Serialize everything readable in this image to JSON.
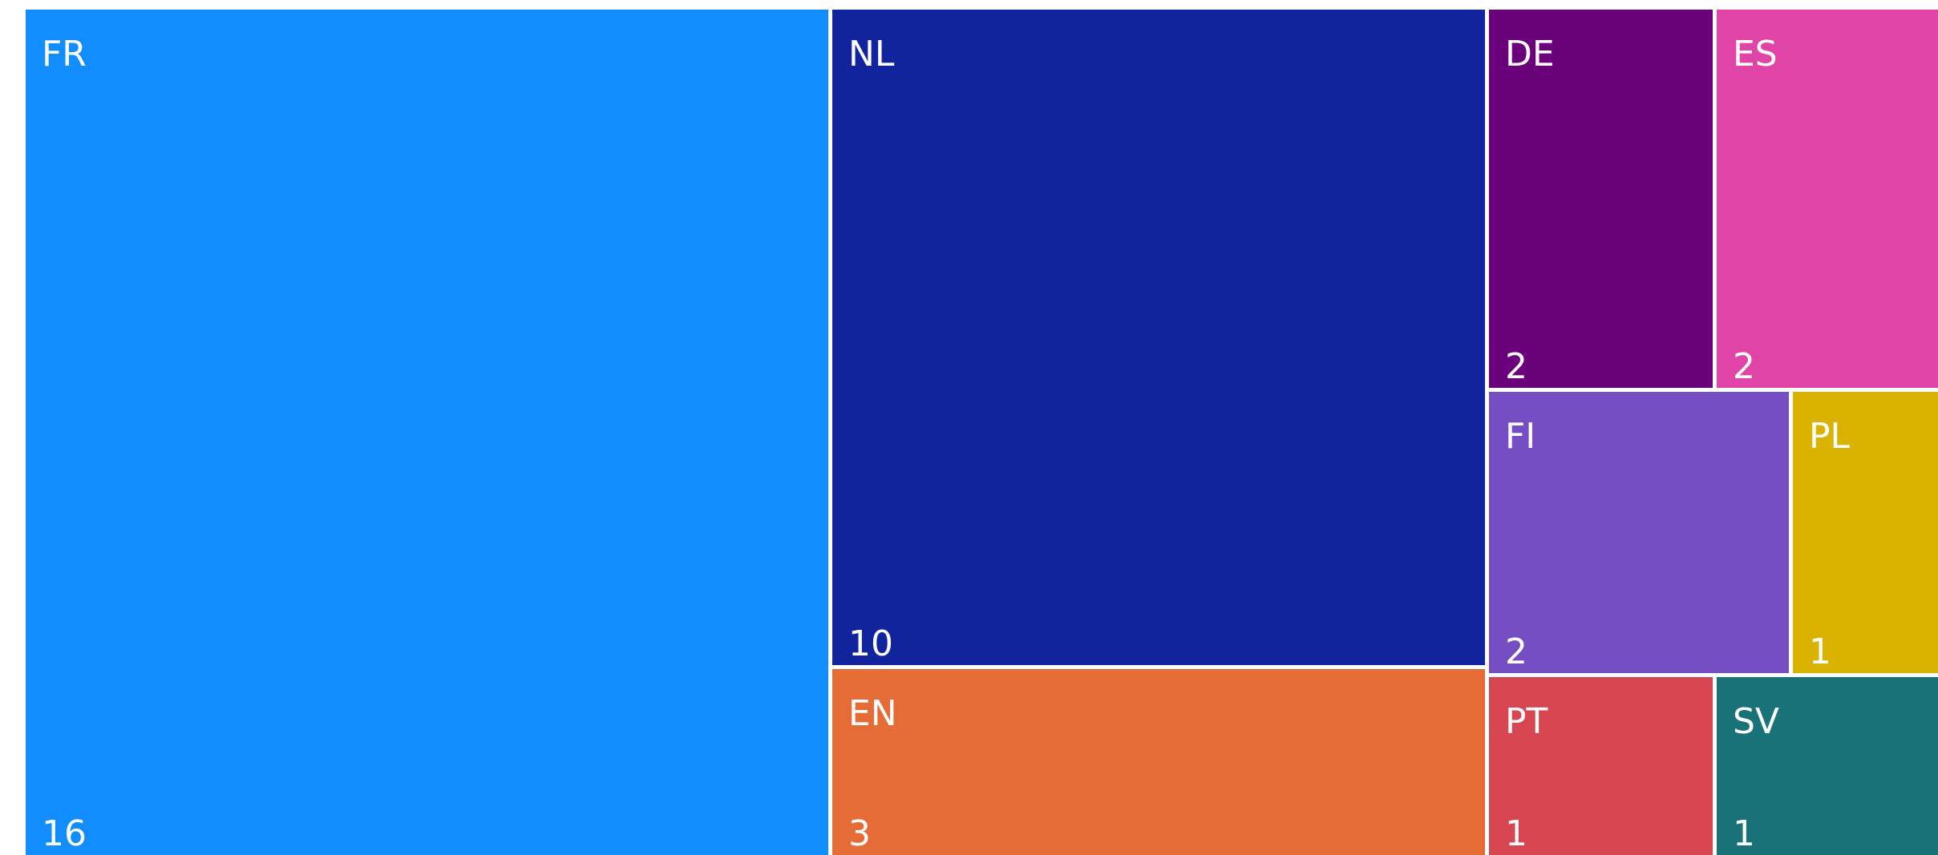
{
  "chart_data": {
    "type": "treemap",
    "categories": [
      "FR",
      "NL",
      "EN",
      "DE",
      "ES",
      "FI",
      "PL",
      "PT",
      "SV"
    ],
    "values": [
      16,
      10,
      3,
      2,
      2,
      2,
      1,
      1,
      1
    ],
    "colors": [
      "#118dff",
      "#12239e",
      "#e66c37",
      "#6b007b",
      "#e044a7",
      "#744ec2",
      "#d9b300",
      "#d64550",
      "#197278"
    ],
    "title": ""
  }
}
